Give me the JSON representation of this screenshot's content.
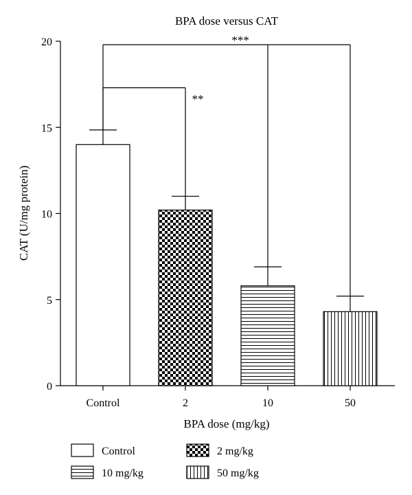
{
  "chart_data": {
    "type": "bar",
    "title": "BPA dose versus CAT",
    "xlabel": "BPA dose (mg/kg)",
    "ylabel": "CAT (U/mg protein)",
    "ylim": [
      0,
      20
    ],
    "yticks": [
      "0",
      "5",
      "10",
      "15",
      "20"
    ],
    "categories": [
      "Control",
      "2",
      "10",
      "50"
    ],
    "values": [
      14.0,
      10.2,
      5.8,
      4.3
    ],
    "errors": [
      0.85,
      0.8,
      1.1,
      0.9
    ],
    "patterns": [
      "none",
      "checker",
      "horizontal-lines",
      "vertical-lines"
    ],
    "legend": {
      "position": "bottom",
      "entries": [
        "Control",
        "2 mg/kg",
        "10 mg/kg",
        "50 mg/kg"
      ]
    },
    "significance": [
      {
        "label": "**",
        "from": "Control",
        "to": "2",
        "y": 17.3
      },
      {
        "label": "***",
        "from": "Control",
        "to": [
          "10",
          "50"
        ],
        "y": 19.8
      }
    ]
  }
}
